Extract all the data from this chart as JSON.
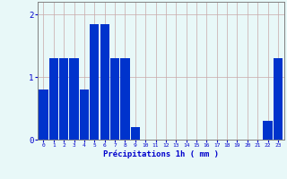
{
  "hours": [
    0,
    1,
    2,
    3,
    4,
    5,
    6,
    7,
    8,
    9,
    10,
    11,
    12,
    13,
    14,
    15,
    16,
    17,
    18,
    19,
    20,
    21,
    22,
    23
  ],
  "values": [
    0.8,
    1.3,
    1.3,
    1.3,
    0.8,
    1.85,
    1.85,
    1.3,
    1.3,
    0.2,
    0,
    0,
    0,
    0,
    0,
    0,
    0,
    0,
    0,
    0,
    0,
    0,
    0.3,
    1.3
  ],
  "bar_color": "#0033cc",
  "background_color": "#e8f8f8",
  "grid_color": "#c8a8a8",
  "tick_color": "#0000cc",
  "label_color": "#0000cc",
  "xlabel": "Précipitations 1h ( mm )",
  "ylim": [
    0,
    2.2
  ],
  "yticks": [
    0,
    1,
    2
  ],
  "xlim": [
    -0.6,
    23.6
  ]
}
